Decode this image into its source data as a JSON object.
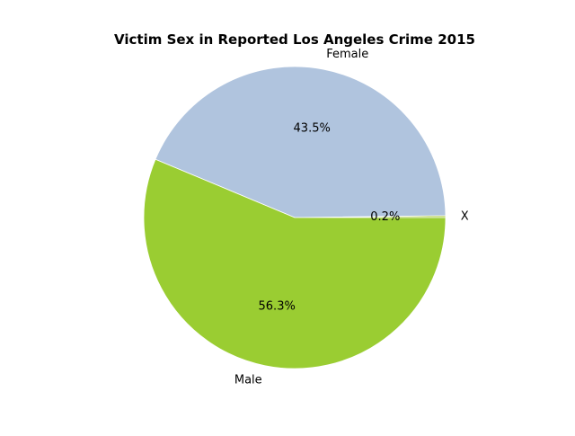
{
  "chart_data": {
    "type": "pie",
    "title": "Victim Sex in Reported Los Angeles Crime 2015",
    "slices": [
      {
        "label": "X",
        "value": 0.2,
        "pct_label": "0.2%",
        "color": "#a8c83a"
      },
      {
        "label": "Female",
        "value": 43.5,
        "pct_label": "43.5%",
        "color": "#b0c4de"
      },
      {
        "label": "Male",
        "value": 56.3,
        "pct_label": "56.3%",
        "color": "#9acd32"
      }
    ],
    "start_angle_deg": 0,
    "direction": "counterclockwise",
    "legend": "none"
  }
}
